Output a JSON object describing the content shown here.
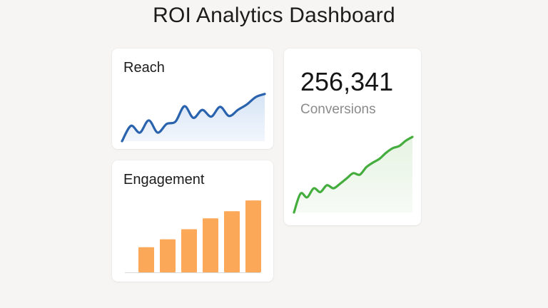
{
  "page": {
    "title": "ROI Analytics Dashboard"
  },
  "colors": {
    "background": "#f6f5f3",
    "reach_line": "#2a63ad",
    "reach_fill": "#d6e4f5",
    "engagement_bar": "#fba859",
    "conversions_line": "#44ad3e",
    "conversions_fill": "#e6f3e3"
  },
  "cards": {
    "reach": {
      "title": "Reach"
    },
    "engagement": {
      "title": "Engagement"
    },
    "conversions": {
      "value": "256,341",
      "label": "Conversions"
    }
  },
  "chart_data": [
    {
      "type": "area",
      "title": "Reach",
      "x": [
        0,
        1,
        2,
        3,
        4,
        5,
        6,
        7,
        8,
        9,
        10,
        11,
        12,
        13,
        14,
        15,
        16
      ],
      "values": [
        0,
        25,
        14,
        34,
        14,
        28,
        32,
        57,
        38,
        51,
        40,
        56,
        41,
        51,
        60,
        72,
        77
      ],
      "xlabel": "",
      "ylabel": "",
      "ylim": [
        0,
        100
      ],
      "grid": false,
      "axes_visible": false
    },
    {
      "type": "bar",
      "title": "Engagement",
      "categories": [
        "",
        "",
        "",
        "",
        "",
        ""
      ],
      "values": [
        35,
        46,
        60,
        75,
        85,
        100
      ],
      "xlabel": "",
      "ylabel": "",
      "ylim": [
        0,
        110
      ],
      "grid": false,
      "axes_visible": false
    },
    {
      "type": "area",
      "title": "Conversions",
      "x": [
        0,
        1,
        2,
        3,
        4,
        5,
        6,
        7,
        8,
        9,
        10,
        11,
        12,
        13,
        14,
        15,
        16,
        17,
        18
      ],
      "values": [
        0,
        25,
        20,
        32,
        27,
        36,
        32,
        38,
        45,
        52,
        50,
        60,
        66,
        71,
        79,
        85,
        88,
        95,
        100
      ],
      "xlabel": "",
      "ylabel": "",
      "ylim": [
        0,
        100
      ],
      "grid": false,
      "axes_visible": false
    }
  ]
}
